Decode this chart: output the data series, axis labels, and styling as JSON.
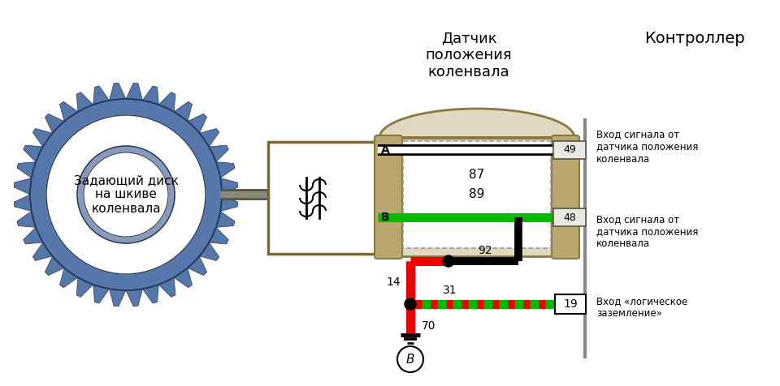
{
  "bg_color": "#ffffff",
  "title_sensor": "Датчик\nположения\nколенвала",
  "title_controller": "Контроллер",
  "title_disk": "Задающий диск\nна шкиве\nколенвала",
  "label_A": "A",
  "label_B": "B",
  "label_49": "49",
  "label_87": "87",
  "label_89": "89",
  "label_48": "48",
  "label_92": "92",
  "label_14": "14",
  "label_31": "31",
  "label_19": "19",
  "label_70": "70",
  "label_B2": "B",
  "right_text1": "Вход сигнала от\nдатчика положения\nколенвала",
  "right_text2": "Вход сигнала от\nдатчика положения\nколенвала",
  "right_text3": "Вход «логическое\nзаземление»",
  "green_color": "#00bb00",
  "red_color": "#ee0000",
  "black_color": "#000000",
  "gear_color_outer": "#5577aa",
  "gear_color_inner": "#4466aa",
  "gear_edge": "#223355",
  "sensor_fill": "#c8b870",
  "sensor_edge": "#7a6a30",
  "connector_fill": "#e0d8c0",
  "connector_edge": "#8a7840",
  "wall_color": "#888888",
  "pin_box_fill": "#e8e8e0",
  "pin_box_edge": "#666655"
}
